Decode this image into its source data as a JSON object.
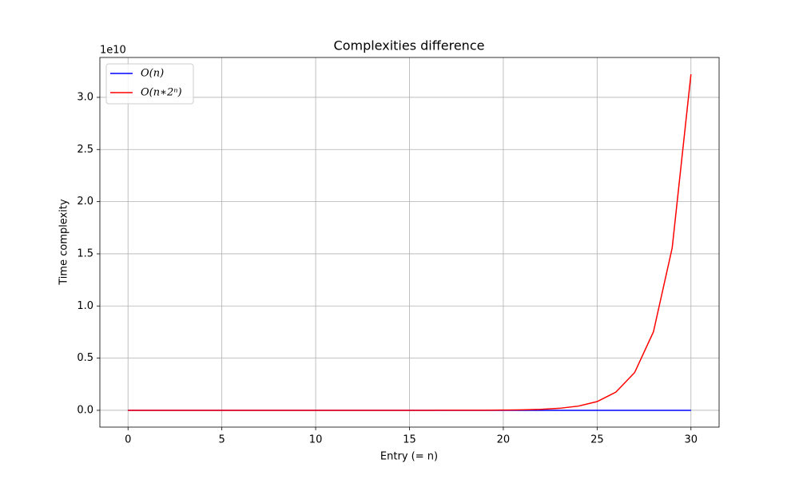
{
  "chart_data": {
    "type": "line",
    "title": "Complexities difference",
    "xlabel": "Entry (= n)",
    "ylabel": "Time complexity",
    "y_offset_label": "1e10",
    "x": [
      0,
      1,
      2,
      3,
      4,
      5,
      6,
      7,
      8,
      9,
      10,
      11,
      12,
      13,
      14,
      15,
      16,
      17,
      18,
      19,
      20,
      21,
      22,
      23,
      24,
      25,
      26,
      27,
      28,
      29,
      30
    ],
    "series": [
      {
        "name": "O(n)",
        "color": "#0000ff",
        "values": [
          0,
          1,
          2,
          3,
          4,
          5,
          6,
          7,
          8,
          9,
          10,
          11,
          12,
          13,
          14,
          15,
          16,
          17,
          18,
          19,
          20,
          21,
          22,
          23,
          24,
          25,
          26,
          27,
          28,
          29,
          30
        ]
      },
      {
        "name": "O(n∗2ⁿ)",
        "color": "#ff0000",
        "values": [
          0,
          2,
          8,
          24,
          64,
          160,
          384,
          896,
          2048,
          4608,
          10240,
          22528,
          49152,
          106496,
          229376,
          491520,
          1048576,
          2228224,
          4718592,
          9961472,
          20971520,
          44040192,
          92274688,
          192937984,
          402653184,
          838860800,
          1744830464,
          3623878656,
          7516192768,
          15569256448,
          32212254720
        ]
      }
    ],
    "xlim": [
      -1.5,
      31.5
    ],
    "xticks": [
      0,
      5,
      10,
      15,
      20,
      25,
      30
    ],
    "ylim": [
      -1610612736,
      33822867456
    ],
    "yticks": [
      {
        "value": 0,
        "label": "0.0"
      },
      {
        "value": 5000000000,
        "label": "0.5"
      },
      {
        "value": 10000000000,
        "label": "1.0"
      },
      {
        "value": 15000000000,
        "label": "1.5"
      },
      {
        "value": 20000000000,
        "label": "2.0"
      },
      {
        "value": 25000000000,
        "label": "2.5"
      },
      {
        "value": 30000000000,
        "label": "3.0"
      }
    ],
    "grid": true,
    "legend": "upper left"
  }
}
